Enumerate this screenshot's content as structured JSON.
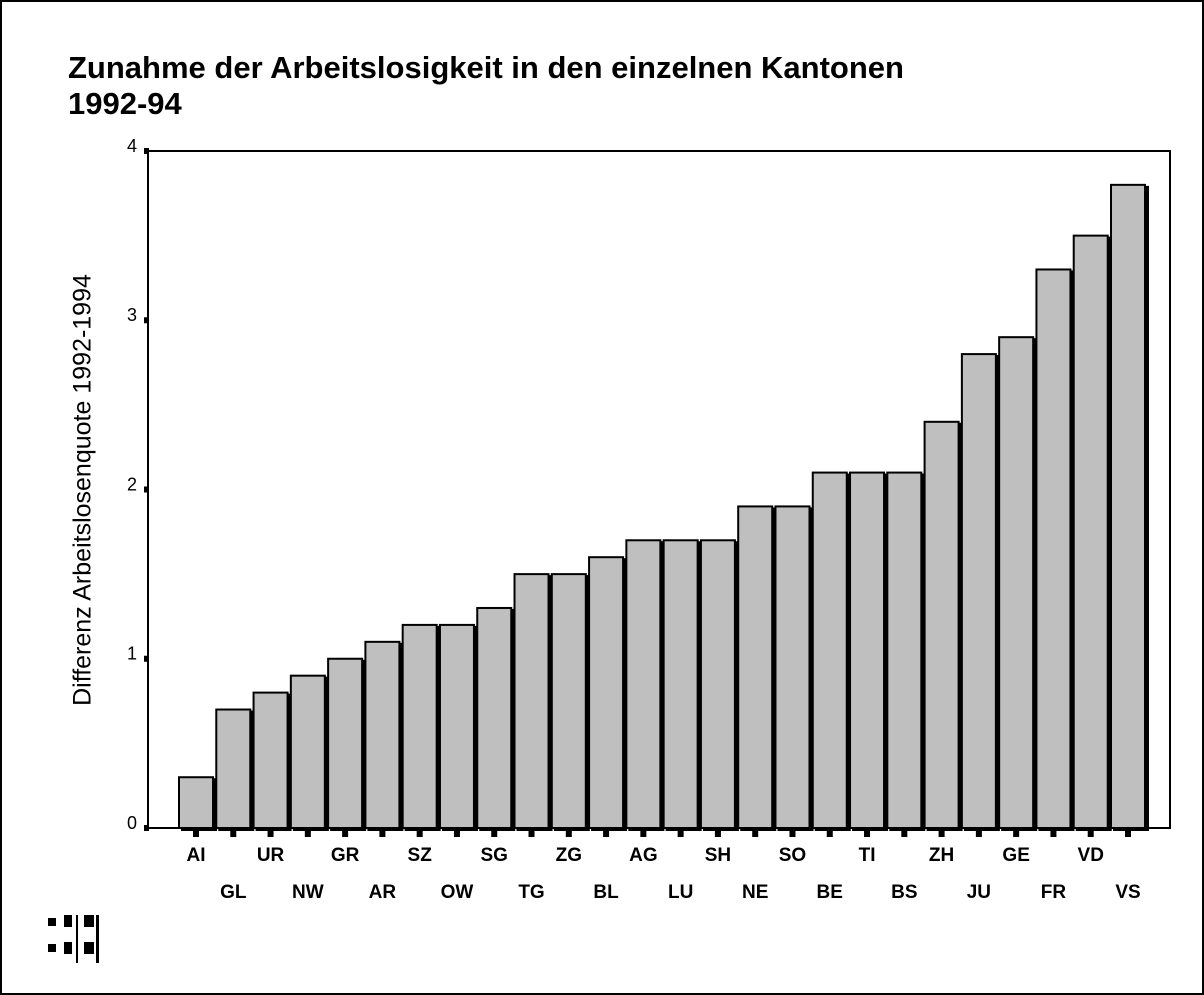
{
  "chart_data": {
    "type": "bar",
    "title": [
      "Zunahme der Arbeitslosigkeit in den einzelnen Kantonen",
      "1992-94"
    ],
    "y_label": "Differenz Arbeitslosenquote 1992-1994",
    "categories": [
      "AI",
      "GL",
      "UR",
      "NW",
      "GR",
      "AR",
      "SZ",
      "OW",
      "SG",
      "TG",
      "ZG",
      "BL",
      "AG",
      "LU",
      "SH",
      "NE",
      "SO",
      "BE",
      "TI",
      "BS",
      "ZH",
      "JU",
      "GE",
      "FR",
      "VD",
      "VS"
    ],
    "values": [
      0.3,
      0.7,
      0.8,
      0.9,
      1.0,
      1.1,
      1.2,
      1.2,
      1.3,
      1.5,
      1.5,
      1.6,
      1.7,
      1.7,
      1.7,
      1.9,
      1.9,
      2.1,
      2.1,
      2.1,
      2.4,
      2.8,
      2.9,
      3.3,
      3.5,
      3.8
    ],
    "color": "#bfbfbf",
    "ylim": [
      0,
      4
    ],
    "yticks": [
      0,
      1,
      2,
      3,
      4
    ],
    "grid": false
  }
}
